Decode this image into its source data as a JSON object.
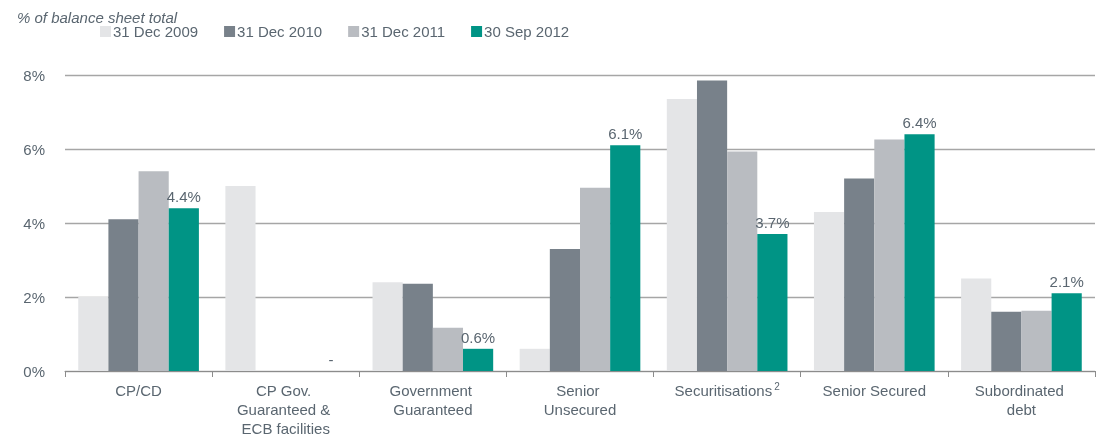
{
  "chart_data": {
    "type": "bar",
    "ylabel": "% of balance sheet total",
    "categories": [
      "CP/CD",
      "CP Gov. Guaranteed & ECB facilities",
      "Government Guaranteed",
      "Senior Unsecured",
      "Securitisations$^{2}$",
      "Senior Secured",
      "Subordinated debt"
    ],
    "series": [
      {
        "name": "31 Dec 2009",
        "color": "#e4e5e7",
        "values": [
          2.0,
          5.0,
          2.4,
          0.6,
          7.35,
          4.3,
          2.5
        ]
      },
      {
        "name": "31 Dec 2010",
        "color": "#78818a",
        "values": [
          4.1,
          null,
          2.36,
          3.3,
          7.85,
          5.2,
          1.6
        ]
      },
      {
        "name": "31 Dec 2011",
        "color": "#b9bcc1",
        "values": [
          5.4,
          null,
          1.17,
          4.95,
          5.93,
          6.26,
          1.63
        ]
      },
      {
        "name": "30 Sep 2012",
        "color": "#009485",
        "values": [
          4.4,
          null,
          0.6,
          6.1,
          3.7,
          6.4,
          2.1
        ],
        "value_labels": [
          "4.4%",
          null,
          "0.6%",
          "6.1%",
          "3.7%",
          "6.4%",
          "2.1%"
        ]
      }
    ],
    "annotations": [
      "-"
    ],
    "ylim": [
      0,
      8
    ],
    "yticks": [
      {
        "value": 0,
        "label": "0%"
      },
      {
        "value": 2,
        "label": "2%"
      },
      {
        "value": 4,
        "label": "4%"
      },
      {
        "value": 6,
        "label": "6%"
      },
      {
        "value": 8,
        "label": "8%"
      }
    ],
    "grid": "y",
    "legend": "top left"
  }
}
